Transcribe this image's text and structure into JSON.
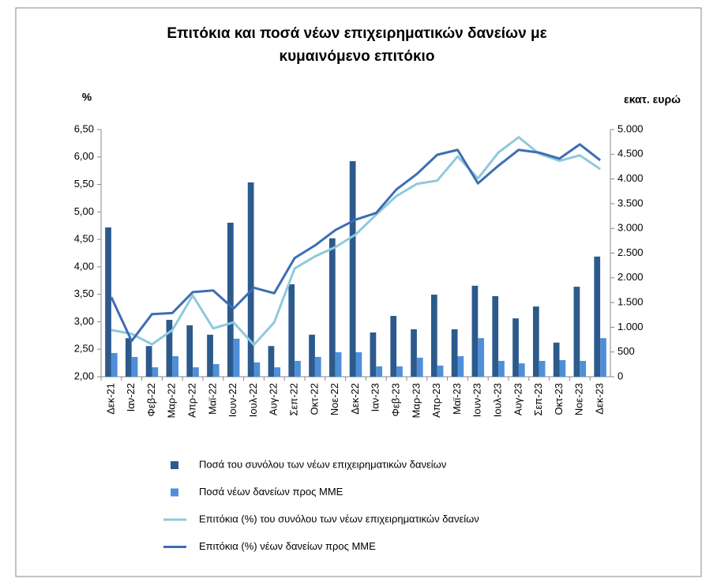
{
  "chart_data": {
    "type": "bar",
    "title": "Επιτόκια και ποσά νέων επιχειρηματικών δανείων με",
    "title_line2": "κυμαινόμενο επιτόκιο",
    "y_label": "%",
    "y2_label": "εκατ. ευρώ",
    "categories": [
      "Δεκ-21",
      "Ιαν-22",
      "Φεβ-22",
      "Μαρ-22",
      "Απρ-22",
      "Μαϊ-22",
      "Ιουν-22",
      "Ιουλ-22",
      "Αυγ-22",
      "Σεπ-22",
      "Οκτ-22",
      "Νοε-22",
      "Δεκ-22",
      "Ιαν-23",
      "Φεβ-23",
      "Μαρ-23",
      "Απρ-23",
      "Μαϊ-23",
      "Ιουν-23",
      "Ιουλ-23",
      "Αυγ-23",
      "Σεπ-23",
      "Οκτ-23",
      "Νοε-23",
      "Δεκ-23"
    ],
    "ylim": [
      2,
      6.5
    ],
    "yticks": [
      {
        "value": 2,
        "label": "2,00"
      },
      {
        "value": 2.5,
        "label": "2,50"
      },
      {
        "value": 3,
        "label": "3,00"
      },
      {
        "value": 3.5,
        "label": "3,50"
      },
      {
        "value": 4,
        "label": "4,00"
      },
      {
        "value": 4.5,
        "label": "4,50"
      },
      {
        "value": 5,
        "label": "5,00"
      },
      {
        "value": 5.5,
        "label": "5,50"
      },
      {
        "value": 6,
        "label": "6,00"
      },
      {
        "value": 6.5,
        "label": "6,50"
      }
    ],
    "y2lim": [
      0,
      5000
    ],
    "y2ticks": [
      0,
      500,
      {
        "value": 1000,
        "label": "1.000"
      },
      {
        "value": 1500,
        "label": "1.500"
      },
      {
        "value": 2000,
        "label": "2.000"
      },
      {
        "value": 2500,
        "label": "2.500"
      },
      {
        "value": 3000,
        "label": "3.000"
      },
      {
        "value": 3500,
        "label": "3.500"
      },
      {
        "value": 4000,
        "label": "4.000"
      },
      {
        "value": 4500,
        "label": "4.500"
      },
      {
        "value": 5000,
        "label": "5.000"
      }
    ],
    "legend": "bottom",
    "series": [
      {
        "name": "Ποσά του συνόλου των νέων επιχειρηματικών δανείων",
        "type": "bar",
        "axis": "y2",
        "color": "#2c5a8c",
        "values": [
          3020,
          780,
          620,
          1150,
          1040,
          850,
          3115,
          3930,
          620,
          1870,
          850,
          2800,
          4360,
          895,
          1230,
          960,
          1660,
          960,
          1840,
          1630,
          1180,
          1420,
          690,
          1820,
          2430
        ]
      },
      {
        "name": "Ποσά νέων δανείων προς ΜΜΕ",
        "type": "bar",
        "axis": "y2",
        "color": "#4f8fd9",
        "values": [
          480,
          400,
          190,
          415,
          190,
          255,
          770,
          290,
          190,
          320,
          400,
          495,
          495,
          210,
          210,
          385,
          225,
          415,
          780,
          320,
          270,
          320,
          335,
          320,
          780
        ]
      },
      {
        "name": "Επιτόκια (%) του συνόλου των νέων επιχειρηματικών δανείων",
        "type": "line",
        "axis": "y",
        "color": "#8fc9dc",
        "values": [
          2.85,
          2.78,
          2.59,
          2.85,
          3.48,
          2.88,
          2.99,
          2.58,
          2.99,
          3.97,
          4.19,
          4.36,
          4.59,
          4.95,
          5.29,
          5.51,
          5.57,
          6.01,
          5.61,
          6.08,
          6.36,
          6.06,
          5.93,
          6.03,
          5.78
        ]
      },
      {
        "name": "Επιτόκια (%) νέων δανείων προς ΜΜΕ",
        "type": "line",
        "axis": "y",
        "color": "#3c6eb4",
        "values": [
          3.45,
          2.65,
          3.14,
          3.16,
          3.54,
          3.57,
          3.24,
          3.62,
          3.52,
          4.16,
          4.39,
          4.67,
          4.86,
          4.98,
          5.41,
          5.69,
          6.04,
          6.13,
          5.52,
          5.84,
          6.13,
          6.08,
          5.97,
          6.23,
          5.94
        ]
      }
    ]
  }
}
